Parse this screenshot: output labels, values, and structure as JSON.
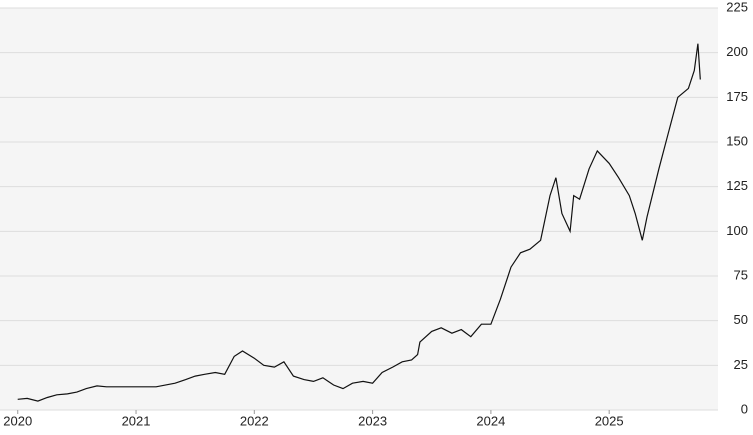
{
  "chart_data": {
    "type": "line",
    "x": [
      2020.0,
      2020.08,
      2020.17,
      2020.25,
      2020.33,
      2020.42,
      2020.5,
      2020.58,
      2020.67,
      2020.75,
      2020.83,
      2021.0,
      2021.17,
      2021.33,
      2021.42,
      2021.5,
      2021.58,
      2021.67,
      2021.75,
      2021.83,
      2021.9,
      2022.0,
      2022.08,
      2022.17,
      2022.25,
      2022.33,
      2022.42,
      2022.5,
      2022.58,
      2022.67,
      2022.75,
      2022.83,
      2022.92,
      2023.0,
      2023.08,
      2023.17,
      2023.25,
      2023.33,
      2023.38,
      2023.4,
      2023.5,
      2023.58,
      2023.67,
      2023.75,
      2023.83,
      2023.92,
      2024.0,
      2024.08,
      2024.17,
      2024.25,
      2024.33,
      2024.42,
      2024.5,
      2024.55,
      2024.6,
      2024.67,
      2024.7,
      2024.75,
      2024.83,
      2024.9,
      2025.0,
      2025.08,
      2025.17,
      2025.22,
      2025.28,
      2025.32,
      2025.42,
      2025.5,
      2025.58,
      2025.67,
      2025.72,
      2025.75,
      2025.77
    ],
    "series": [
      {
        "color": "#111111",
        "values": [
          6,
          6.5,
          5,
          7,
          8.5,
          9,
          10,
          12,
          13.5,
          13,
          13,
          13,
          13,
          15,
          17,
          19,
          20,
          21,
          20,
          30,
          33,
          29,
          25,
          24,
          27,
          19,
          17,
          16,
          18,
          14,
          12,
          15,
          16,
          15,
          21,
          24,
          27,
          28,
          31,
          38,
          44,
          46,
          43,
          45,
          41,
          48,
          48,
          62,
          80,
          88,
          90,
          95,
          120,
          130,
          110,
          100,
          120,
          118,
          135,
          145,
          138,
          130,
          120,
          110,
          95,
          108,
          135,
          155,
          175,
          180,
          190,
          205,
          185
        ]
      }
    ],
    "xlim": [
      2019.85,
      2025.92
    ],
    "xticks": [
      2020,
      2021,
      2022,
      2023,
      2024,
      2025
    ],
    "ylim": [
      0,
      225
    ],
    "yticks": [
      0,
      25,
      50,
      75,
      100,
      125,
      150,
      175,
      200,
      225
    ],
    "grid": true
  }
}
